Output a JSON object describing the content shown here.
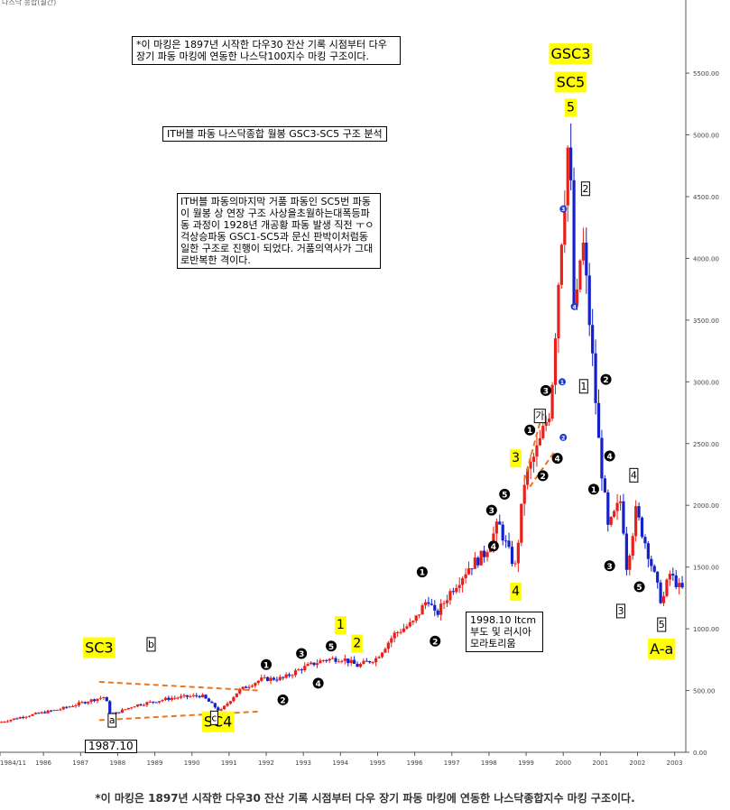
{
  "header_label": "나스닥 종합(월간)",
  "notes": {
    "top_note": "*이 마킹은 1897년 시작한 다우30 잔산 기록 시점부터 다우 장기 파동 마킹에 연동한 나스닥100지수 마킹 구조이다.",
    "title_note": "IT버블 파동 나스닥종합 월봉 GSC3-SC5 구조 분석",
    "mid_note": "IT버블 파동의마지막 거품 파동인 SC5번 파동이 월봉 상 연장 구조 사상을초월하는대폭등파동 과정이 1928년 개공황 파동 발생 직전 ㅜㅇ걱상승파동 GSC1-SC5과 문신 판박이처럼동일한 구조로 진행이 되었다. 거품의역사가 그대로반복한 격이다.",
    "ltcm_note": "1998.10 ltcm 부도 및 러시아 모라토리움",
    "date_note": "1987.10"
  },
  "caption": "*이 마킹은 1897년 시작한 다우30 잔산 기록 시점부터 다우 장기 파동 마킹에 연동한 나스닥종합지수 마킹 구조이다.",
  "colors": {
    "up": "#e8201c",
    "down": "#1420c8",
    "label_bg": "#ffff00",
    "trend": "#e87722"
  },
  "chart_data": {
    "type": "candlestick",
    "title": "",
    "xlabel": "",
    "ylabel": "",
    "x_ticks": [
      "1984/11",
      "1986",
      "1987",
      "1988",
      "1989",
      "1990",
      "1991",
      "1992",
      "1993",
      "1994",
      "1995",
      "1996",
      "1997",
      "1998",
      "1999",
      "2000",
      "2001",
      "2002",
      "2003"
    ],
    "y_ticks": [
      "0.00",
      "500.00",
      "1000.00",
      "1500.00",
      "2000.00",
      "2500.00",
      "3000.00",
      "3500.00",
      "4000.00",
      "4500.00",
      "5000.00",
      "5500.00"
    ],
    "ylim": [
      0,
      5800
    ],
    "xlim": [
      1984.83,
      2003.3
    ],
    "grid": false,
    "price_path": [
      [
        1984.83,
        240
      ],
      [
        1985.5,
        290
      ],
      [
        1986.5,
        350
      ],
      [
        1987.3,
        420
      ],
      [
        1987.7,
        450
      ],
      [
        1987.85,
        300
      ],
      [
        1988.5,
        380
      ],
      [
        1989.5,
        440
      ],
      [
        1990.3,
        460
      ],
      [
        1990.8,
        330
      ],
      [
        1991.3,
        500
      ],
      [
        1991.9,
        590
      ],
      [
        1992.5,
        600
      ],
      [
        1993.0,
        680
      ],
      [
        1993.6,
        750
      ],
      [
        1994.1,
        760
      ],
      [
        1994.5,
        700
      ],
      [
        1995.0,
        760
      ],
      [
        1995.5,
        960
      ],
      [
        1996.0,
        1050
      ],
      [
        1996.4,
        1250
      ],
      [
        1996.6,
        1100
      ],
      [
        1997.0,
        1300
      ],
      [
        1997.5,
        1500
      ],
      [
        1997.9,
        1600
      ],
      [
        1998.3,
        1850
      ],
      [
        1998.6,
        1600
      ],
      [
        1998.75,
        1500
      ],
      [
        1999.0,
        2200
      ],
      [
        1999.4,
        2500
      ],
      [
        1999.7,
        2800
      ],
      [
        1999.95,
        4000
      ],
      [
        2000.2,
        5048
      ],
      [
        2000.35,
        3400
      ],
      [
        2000.55,
        4200
      ],
      [
        2000.8,
        3300
      ],
      [
        2001.0,
        2500
      ],
      [
        2001.25,
        1800
      ],
      [
        2001.6,
        2050
      ],
      [
        2001.75,
        1500
      ],
      [
        2002.0,
        1950
      ],
      [
        2002.3,
        1650
      ],
      [
        2002.7,
        1200
      ],
      [
        2002.9,
        1450
      ],
      [
        2003.2,
        1320
      ]
    ],
    "wave_labels": [
      {
        "label": "GSC3",
        "x": 2000.2,
        "y": 5650,
        "style": "yellow"
      },
      {
        "label": "SC5",
        "x": 2000.2,
        "y": 5420,
        "style": "yellow"
      },
      {
        "label": "5",
        "x": 2000.2,
        "y": 5220,
        "style": "yellow"
      },
      {
        "label": "2",
        "x": 2000.6,
        "y": 4560,
        "style": "box"
      },
      {
        "label": "1",
        "x": 2000.55,
        "y": 2960,
        "style": "box"
      },
      {
        "label": "가",
        "x": 1999.37,
        "y": 2720,
        "style": "box"
      },
      {
        "label": "3",
        "x": 1998.72,
        "y": 2380,
        "style": "yellow"
      },
      {
        "label": "4",
        "x": 1998.72,
        "y": 1300,
        "style": "yellow"
      },
      {
        "label": "1",
        "x": 1994.0,
        "y": 1030,
        "style": "yellow"
      },
      {
        "label": "2",
        "x": 1994.45,
        "y": 880,
        "style": "yellow"
      },
      {
        "label": "SC3",
        "x": 1987.5,
        "y": 840,
        "style": "yellow"
      },
      {
        "label": "SC4",
        "x": 1990.7,
        "y": 240,
        "style": "yellow"
      },
      {
        "label": "b",
        "x": 1988.9,
        "y": 870,
        "style": "box"
      },
      {
        "label": "a",
        "x": 1987.85,
        "y": 255,
        "style": "box"
      },
      {
        "label": "c",
        "x": 1990.6,
        "y": 275,
        "style": "box"
      },
      {
        "label": "4",
        "x": 2001.9,
        "y": 2240,
        "style": "box"
      },
      {
        "label": "3",
        "x": 2001.55,
        "y": 1140,
        "style": "box"
      },
      {
        "label": "5",
        "x": 2002.65,
        "y": 1030,
        "style": "box"
      },
      {
        "label": "A-a",
        "x": 2002.65,
        "y": 830,
        "style": "yellow"
      }
    ],
    "circle_markers": [
      {
        "label": "1",
        "x": 1992.0,
        "y": 710,
        "style": "black"
      },
      {
        "label": "2",
        "x": 1992.45,
        "y": 425,
        "style": "black"
      },
      {
        "label": "3",
        "x": 1992.95,
        "y": 800,
        "style": "black"
      },
      {
        "label": "4",
        "x": 1993.4,
        "y": 560,
        "style": "black"
      },
      {
        "label": "5",
        "x": 1993.75,
        "y": 860,
        "style": "black"
      },
      {
        "label": "1",
        "x": 1996.2,
        "y": 1460,
        "style": "black"
      },
      {
        "label": "2",
        "x": 1996.55,
        "y": 900,
        "style": "black"
      },
      {
        "label": "3",
        "x": 1998.07,
        "y": 1960,
        "style": "black"
      },
      {
        "label": "4",
        "x": 1998.12,
        "y": 1670,
        "style": "black"
      },
      {
        "label": "5",
        "x": 1998.42,
        "y": 2090,
        "style": "black"
      },
      {
        "label": "1",
        "x": 1999.1,
        "y": 2610,
        "style": "black"
      },
      {
        "label": "2",
        "x": 1999.45,
        "y": 2240,
        "style": "black"
      },
      {
        "label": "3",
        "x": 1999.53,
        "y": 2930,
        "style": "black"
      },
      {
        "label": "4",
        "x": 1999.84,
        "y": 2380,
        "style": "black"
      },
      {
        "label": "2",
        "x": 2001.15,
        "y": 3020,
        "style": "black"
      },
      {
        "label": "4",
        "x": 2001.25,
        "y": 2400,
        "style": "black"
      },
      {
        "label": "1",
        "x": 2000.82,
        "y": 2130,
        "style": "black"
      },
      {
        "label": "3",
        "x": 2001.25,
        "y": 1510,
        "style": "black"
      },
      {
        "label": "5",
        "x": 2002.05,
        "y": 1340,
        "style": "black"
      },
      {
        "label": "1",
        "x": 1999.97,
        "y": 3000,
        "style": "blue"
      },
      {
        "label": "2",
        "x": 2000.0,
        "y": 2550,
        "style": "blue"
      },
      {
        "label": "3",
        "x": 2000.0,
        "y": 4400,
        "style": "blue"
      },
      {
        "label": "4",
        "x": 2000.3,
        "y": 3610,
        "style": "blue"
      },
      {
        "label": "5",
        "x": 2000.25,
        "y": 5230,
        "style": "blue"
      }
    ],
    "trend_lines": [
      {
        "from": [
          1987.5,
          570
        ],
        "to": [
          1991.8,
          500
        ]
      },
      {
        "from": [
          1987.5,
          260
        ],
        "to": [
          1991.8,
          330
        ]
      },
      {
        "from": [
          1998.95,
          2200
        ],
        "to": [
          1999.4,
          2700
        ]
      },
      {
        "from": [
          1999.1,
          2150
        ],
        "to": [
          1999.8,
          2450
        ]
      }
    ]
  }
}
